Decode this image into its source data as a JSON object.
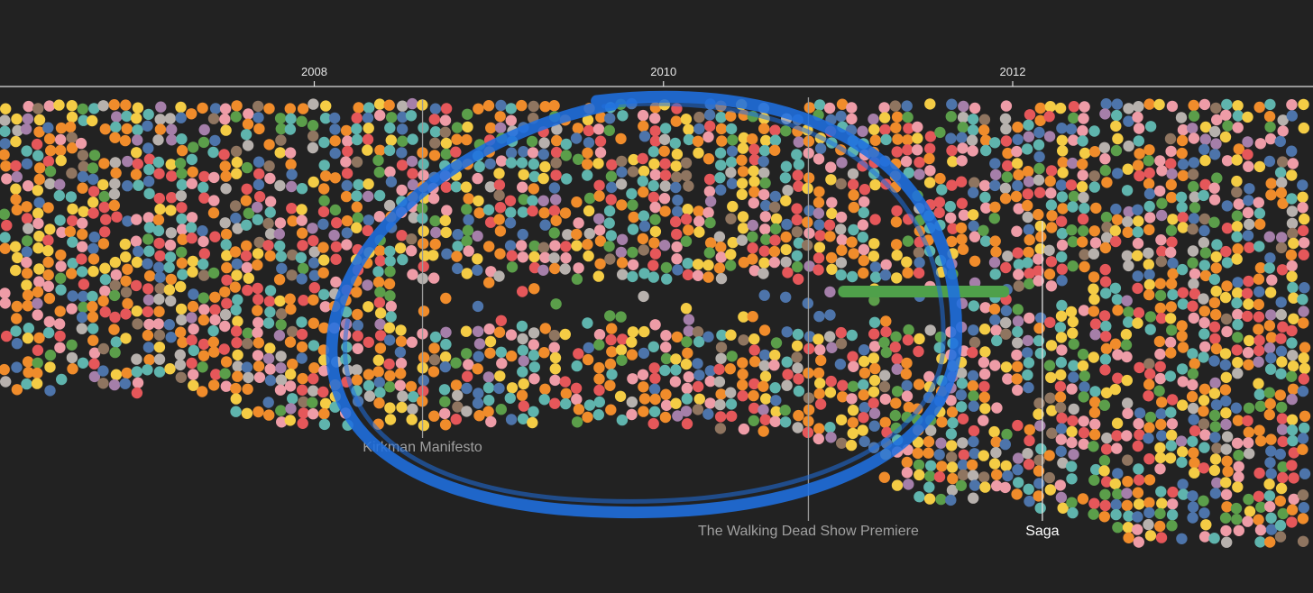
{
  "chart_data": {
    "type": "scatter",
    "x_axis": {
      "domain": [
        2006.2,
        2013.72
      ],
      "ticks": [
        {
          "value": 2008,
          "label": "2008"
        },
        {
          "value": 2010,
          "label": "2010"
        },
        {
          "value": 2012,
          "label": "2012"
        }
      ],
      "grid": false
    },
    "events": [
      {
        "name": "Kirkman Manifesto",
        "x": 2008.62,
        "emphasis": "muted"
      },
      {
        "name": "The Walking Dead Show Premiere",
        "x": 2010.83,
        "emphasis": "muted"
      },
      {
        "name": "Saga",
        "x": 2012.17,
        "emphasis": "highlight"
      }
    ],
    "highlight_bar": {
      "x_start": 2011.0,
      "x_end": 2011.98,
      "color": "#4fa04a"
    },
    "annotation": {
      "shape": "hand-drawn ellipse",
      "color": "#1f6fe0",
      "x_center": 2010.02
    },
    "category_colors": [
      "#e5575a",
      "#f08c2b",
      "#f4cc45",
      "#5fb4ad",
      "#4d74aa",
      "#5b9e4a",
      "#ee9ca7",
      "#a57fa9",
      "#8f7560",
      "#b7b1ad"
    ],
    "notes": "Each dot is one comic issue; dots are stacked in rows by series and colored by category."
  },
  "colors": {
    "background": "#222222",
    "axis": "#dddddd",
    "event_line_muted": "#9a9a9a",
    "event_line_highlight": "#e0e0e0",
    "event_label_muted": "#a0a0a0",
    "event_label_highlight": "#ffffff"
  }
}
